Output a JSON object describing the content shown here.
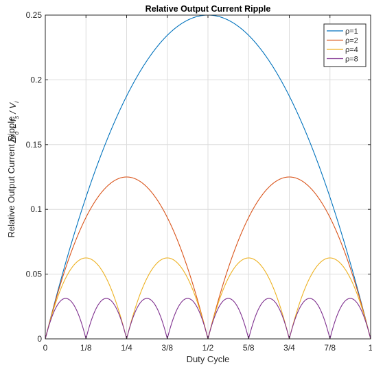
{
  "chart_data": {
    "type": "line",
    "title": "Relative Output Current Ripple",
    "xlabel": "Duty Cycle",
    "ylabel_line1": "Relative Output Current Ripple",
    "ylabel_line2": "Δi",
    "ylabel_sub_o": "o",
    "ylabel_L": "L f",
    "ylabel_sub_s": "s",
    "ylabel_div": "/ V",
    "ylabel_sub_i": "i",
    "xlim": [
      0,
      1
    ],
    "ylim": [
      0,
      0.25
    ],
    "grid": true,
    "legend_placement": "top-right",
    "x_ticks": [
      {
        "value": 0,
        "label": "0"
      },
      {
        "value": 0.125,
        "label": "1/8"
      },
      {
        "value": 0.25,
        "label": "1/4"
      },
      {
        "value": 0.375,
        "label": "3/8"
      },
      {
        "value": 0.5,
        "label": "1/2"
      },
      {
        "value": 0.625,
        "label": "5/8"
      },
      {
        "value": 0.75,
        "label": "3/4"
      },
      {
        "value": 0.875,
        "label": "7/8"
      },
      {
        "value": 1,
        "label": "1"
      }
    ],
    "y_ticks": [
      {
        "value": 0,
        "label": "0"
      },
      {
        "value": 0.05,
        "label": "0.05"
      },
      {
        "value": 0.1,
        "label": "0.1"
      },
      {
        "value": 0.15,
        "label": "0.15"
      },
      {
        "value": 0.2,
        "label": "0.2"
      },
      {
        "value": 0.25,
        "label": "0.25"
      }
    ],
    "series": [
      {
        "name": "ρ=1",
        "color": "#0072BD",
        "rho": 1,
        "peak_points": [
          {
            "x": 0.5,
            "y": 0.25
          }
        ]
      },
      {
        "name": "ρ=2",
        "color": "#D95319",
        "rho": 2,
        "peak_points": [
          {
            "x": 0.25,
            "y": 0.125
          },
          {
            "x": 0.75,
            "y": 0.125
          }
        ]
      },
      {
        "name": "ρ=4",
        "color": "#EDB120",
        "rho": 4,
        "peak_points": [
          {
            "x": 0.125,
            "y": 0.0625
          },
          {
            "x": 0.375,
            "y": 0.0625
          },
          {
            "x": 0.625,
            "y": 0.0625
          },
          {
            "x": 0.875,
            "y": 0.0625
          }
        ]
      },
      {
        "name": "ρ=8",
        "color": "#7E2F8E",
        "rho": 8,
        "peak_points": [
          {
            "x": 0.0625,
            "y": 0.03125
          },
          {
            "x": 0.1875,
            "y": 0.03125
          },
          {
            "x": 0.3125,
            "y": 0.03125
          },
          {
            "x": 0.4375,
            "y": 0.03125
          },
          {
            "x": 0.5625,
            "y": 0.03125
          },
          {
            "x": 0.6875,
            "y": 0.03125
          },
          {
            "x": 0.8125,
            "y": 0.03125
          },
          {
            "x": 0.9375,
            "y": 0.03125
          }
        ]
      }
    ]
  }
}
